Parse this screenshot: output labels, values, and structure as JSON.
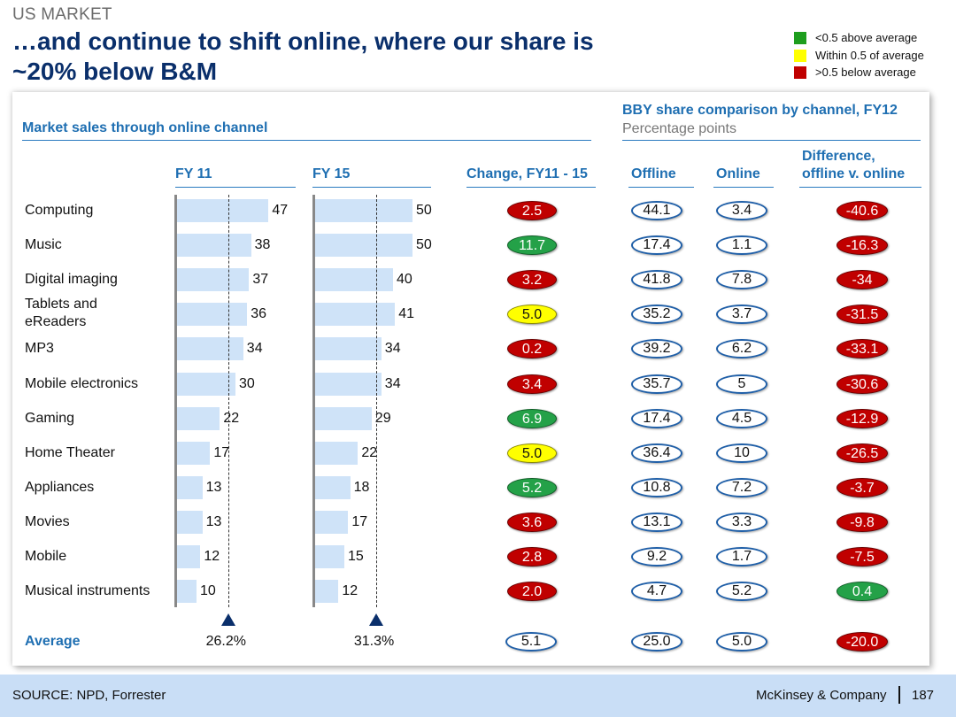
{
  "header": {
    "kicker": "US MARKET",
    "title": "…and continue to shift online, where our share is ~20% below B&M"
  },
  "legend": [
    {
      "label": "<0.5 above average",
      "color": "#1e9e1e"
    },
    {
      "label": "Within 0.5 of average",
      "color": "#ffff00"
    },
    {
      "label": ">0.5 below average",
      "color": "#c00000"
    }
  ],
  "left_section": {
    "title": "Market sales through online channel"
  },
  "right_section": {
    "title": "BBY share comparison by channel, FY12",
    "subtitle": "Percentage points"
  },
  "column_headers": {
    "fy11": "FY 11",
    "fy15": "FY 15",
    "change": "Change, FY11 - 15",
    "offline": "Offline",
    "online": "Online",
    "difference_line1": "Difference,",
    "difference_line2": "offline v. online"
  },
  "colors": {
    "red": "#c00000",
    "green": "#24a148",
    "yellow": "#ffff00",
    "outline": "#1f5fa8",
    "bar": "#cfe3f8"
  },
  "chart_data": {
    "type": "table",
    "categories": [
      "Computing",
      "Music",
      "Digital imaging",
      "Tablets and eReaders",
      "MP3",
      "Mobile electronics",
      "Gaming",
      "Home Theater",
      "Appliances",
      "Movies",
      "Mobile",
      "Musical instruments"
    ],
    "series": [
      {
        "name": "FY 11",
        "values": [
          47,
          38,
          37,
          36,
          34,
          30,
          22,
          17,
          13,
          13,
          12,
          10
        ]
      },
      {
        "name": "FY 15",
        "values": [
          50,
          50,
          40,
          41,
          34,
          34,
          29,
          22,
          18,
          17,
          15,
          12
        ]
      }
    ],
    "change": {
      "values": [
        "2.5",
        "11.7",
        "3.2",
        "5.0",
        "0.2",
        "3.4",
        "6.9",
        "5.0",
        "5.2",
        "3.6",
        "2.8",
        "2.0"
      ],
      "status": [
        "red",
        "green",
        "red",
        "yellow",
        "red",
        "red",
        "green",
        "yellow",
        "green",
        "red",
        "red",
        "red"
      ]
    },
    "offline": [
      "44.1",
      "17.4",
      "41.8",
      "35.2",
      "39.2",
      "35.7",
      "17.4",
      "36.4",
      "10.8",
      "13.1",
      "9.2",
      "4.7"
    ],
    "online": [
      "3.4",
      "1.1",
      "7.8",
      "3.7",
      "6.2",
      "5",
      "4.5",
      "10",
      "7.2",
      "3.3",
      "1.7",
      "5.2"
    ],
    "difference": {
      "values": [
        "-40.6",
        "-16.3",
        "-34",
        "-31.5",
        "-33.1",
        "-30.6",
        "-12.9",
        "-26.5",
        "-3.7",
        "-9.8",
        "-7.5",
        "0.4"
      ],
      "status": [
        "red",
        "red",
        "red",
        "red",
        "red",
        "red",
        "red",
        "red",
        "red",
        "red",
        "red",
        "green"
      ]
    },
    "average": {
      "label": "Average",
      "fy11": 26.2,
      "fy15": 31.3,
      "fy11_label": "26.2%",
      "fy15_label": "31.3%",
      "change": "5.1",
      "offline": "25.0",
      "online": "5.0",
      "difference": "-20.0"
    }
  },
  "footer": {
    "source": "SOURCE: NPD, Forrester",
    "brand": "McKinsey & Company",
    "page": "187"
  }
}
